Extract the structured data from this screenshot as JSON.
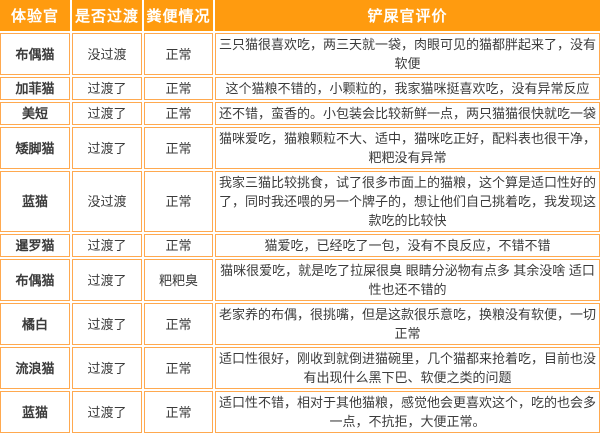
{
  "table": {
    "headers": {
      "experiencer": "体验官",
      "transition": "是否过渡",
      "stool": "粪便情况",
      "review": "铲屎官评价"
    },
    "rows": [
      {
        "cat": "布偶猫",
        "transition": "没过渡",
        "stool": "正常",
        "review": "三只猫很喜欢吃，两三天就一袋，肉眼可见的猫都胖起来了，没有软便"
      },
      {
        "cat": "加菲猫",
        "transition": "过渡了",
        "stool": "正常",
        "review": "这个猫粮不错的，小颗粒的，我家猫咪挺喜欢吃，没有异常反应"
      },
      {
        "cat": "美短",
        "transition": "过渡了",
        "stool": "正常",
        "review": "还不错，蛮香的。小包装会比较新鲜一点，两只猫猫很快就吃一袋"
      },
      {
        "cat": "矮脚猫",
        "transition": "过渡了",
        "stool": "正常",
        "review": "猫咪爱吃，猫粮颗粒不大、适中，猫咪吃正好，配料表也很干净，粑粑没有异常"
      },
      {
        "cat": "蓝猫",
        "transition": "没过渡",
        "stool": "正常",
        "review": "我家三猫比较挑食，试了很多市面上的猫粮，这个算是适口性好的了，同时我还喂的另一个牌子的，想让他们自己挑着吃，我发现这款吃的比较快"
      },
      {
        "cat": "暹罗猫",
        "transition": "过渡了",
        "stool": "正常",
        "review": "猫爱吃，已经吃了一包，没有不良反应，不错不错"
      },
      {
        "cat": "布偶猫",
        "transition": "过渡了",
        "stool": "粑粑臭",
        "review": "猫咪很爱吃，就是吃了拉屎很臭 眼睛分泌物有点多 其余没啥 适口性也还不错的"
      },
      {
        "cat": "橘白",
        "transition": "过渡了",
        "stool": "正常",
        "review": "老家养的布偶，很挑嘴，但是这款很乐意吃，换粮没有软便，一切正常"
      },
      {
        "cat": "流浪猫",
        "transition": "过渡了",
        "stool": "正常",
        "review": "适口性很好，刚收到就倒进猫碗里，几个猫都来抢着吃，目前也没有出现什么黑下巴、软便之类的问题"
      },
      {
        "cat": "蓝猫",
        "transition": "过渡了",
        "stool": "正常",
        "review": "适口性不错，相对于其他猫粮，感觉他会更喜欢这个，吃的也会多一点，不抗拒，大便正常。"
      }
    ]
  },
  "colors": {
    "header_bg": "#FF9B0F",
    "cell_border": "#FFA94F",
    "text": "#3B3B3B"
  }
}
